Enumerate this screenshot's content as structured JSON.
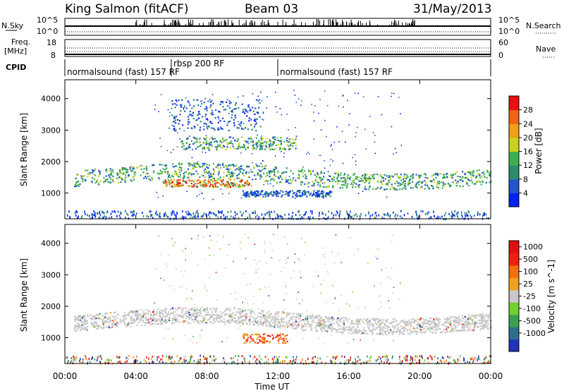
{
  "header": {
    "station": "King Salmon (fitACF)",
    "beam": "Beam 03",
    "date": "31/May/2013"
  },
  "top_panels": {
    "nsky_label": "N.Sky",
    "nsky_ticks": [
      "10^5",
      "10^0"
    ],
    "nsearch_label": "N.Search",
    "nsearch_ticks": [
      "10^5",
      "10^0"
    ],
    "freq_label": "Freq.",
    "freq_unit": "[MHz]",
    "freq_ticks": [
      "18",
      "8"
    ],
    "nave_label": "Nave",
    "nave_ticks": [
      "60",
      "0"
    ],
    "cpid_label": "CPID",
    "cpid_segments": [
      {
        "label": "normalsound (fast) 157 RF",
        "start_hour": 0,
        "end_hour": 6
      },
      {
        "label": "rbsp 200 RF",
        "start_hour": 6,
        "end_hour": 12
      },
      {
        "label": "normalsound (fast) 157 RF",
        "start_hour": 12,
        "end_hour": 24
      }
    ]
  },
  "chart_data": [
    {
      "type": "heatmap",
      "name": "power",
      "ylabel": "Slant Range [km]",
      "yticks": [
        1000,
        2000,
        3000,
        4000
      ],
      "ylim": [
        180,
        4600
      ],
      "xlim": [
        0,
        24
      ],
      "colorbar": {
        "label": "Power [dB]",
        "ticks": [
          "4",
          "8",
          "12",
          "16",
          "20",
          "24",
          "28"
        ],
        "colors": [
          "#0022ee",
          "#2255cc",
          "#2e8a6e",
          "#3cb050",
          "#c8d21e",
          "#f0a018",
          "#f06414",
          "#e81010"
        ]
      },
      "bands": [
        {
          "start_hour": 0.5,
          "end_hour": 24,
          "range_km": [
            1300,
            1800
          ],
          "level": "medium",
          "note": "main band"
        },
        {
          "start_hour": 5.5,
          "end_hour": 10.5,
          "range_km": [
            1200,
            1450
          ],
          "level": "high"
        },
        {
          "start_hour": 6.5,
          "end_hour": 13,
          "range_km": [
            2400,
            2800
          ],
          "level": "medium"
        },
        {
          "start_hour": 6,
          "end_hour": 11,
          "range_km": [
            3000,
            4000
          ],
          "level": "low"
        },
        {
          "start_hour": 10,
          "end_hour": 15,
          "range_km": [
            900,
            1100
          ],
          "level": "low"
        }
      ]
    },
    {
      "type": "heatmap",
      "name": "velocity",
      "ylabel": "Slant Range [km]",
      "yticks": [
        1000,
        2000,
        3000,
        4000
      ],
      "ylim": [
        180,
        4600
      ],
      "xlim": [
        0,
        24
      ],
      "xlabel": "Time UT",
      "xticks": [
        "00:00",
        "04:00",
        "08:00",
        "12:00",
        "16:00",
        "20:00",
        "00:00"
      ],
      "colorbar": {
        "label": "Velocity [m s^-1]",
        "ticks": [
          "1000",
          "500",
          "100",
          "25",
          "-25",
          "-100",
          "-500",
          "-1000"
        ],
        "colors": [
          "#2233bb",
          "#2d6e8c",
          "#3aa050",
          "#72d030",
          "#c8c8c8",
          "#f0a020",
          "#f07010",
          "#ee2010",
          "#e01010"
        ]
      },
      "bands": [
        {
          "start_hour": 0.5,
          "end_hour": 24,
          "range_km": [
            1300,
            1800
          ],
          "level": "ground-scatter"
        },
        {
          "start_hour": 10,
          "end_hour": 12.5,
          "range_km": [
            850,
            1150
          ],
          "level": "negative"
        }
      ]
    }
  ]
}
